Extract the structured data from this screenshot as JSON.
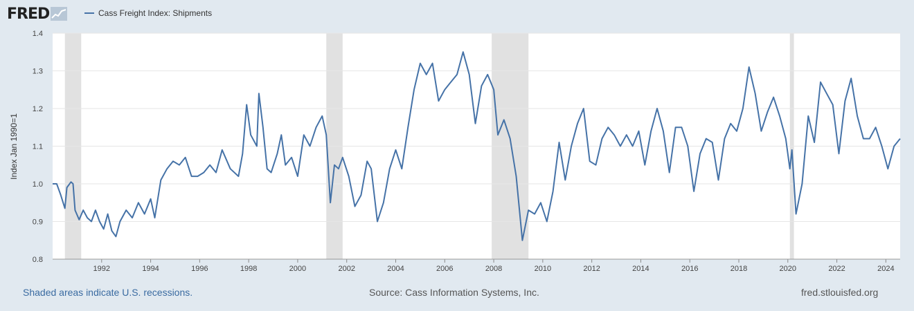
{
  "logo": {
    "text": "FRED",
    "icon": "chart-line-icon"
  },
  "legend": {
    "label": "Cass Freight Index: Shipments",
    "color": "#4572a7"
  },
  "footer": {
    "note": "Shaded areas indicate U.S. recessions.",
    "source": "Source: Cass Information Systems, Inc.",
    "url": "fred.stlouisfed.org"
  },
  "colors": {
    "line": "#4572a7",
    "recession": "#e1e1e1",
    "plot_bg": "#ffffff",
    "page_bg": "#e1e9f0"
  },
  "chart_data": {
    "type": "line",
    "ylabel": "Index Jan 1990=1",
    "xlabel": "",
    "ylim": [
      0.8,
      1.4
    ],
    "xlim": [
      "1990-01",
      "2024-08"
    ],
    "y_ticks": [
      "0.8",
      "0.9",
      "1.0",
      "1.1",
      "1.2",
      "1.3",
      "1.4"
    ],
    "x_ticks": [
      "1992",
      "1994",
      "1996",
      "1998",
      "2000",
      "2002",
      "2004",
      "2006",
      "2008",
      "2010",
      "2012",
      "2014",
      "2016",
      "2018",
      "2020",
      "2022",
      "2024"
    ],
    "grid": true,
    "recessions": [
      [
        "1990-07",
        "1991-03"
      ],
      [
        "2001-03",
        "2001-11"
      ],
      [
        "2007-12",
        "2009-06"
      ],
      [
        "2020-02",
        "2020-04"
      ]
    ],
    "series": [
      {
        "name": "Cass Freight Index: Shipments",
        "points": [
          [
            "1990-01",
            1.0
          ],
          [
            "1990-03",
            1.0
          ],
          [
            "1990-05",
            0.97
          ],
          [
            "1990-07",
            0.935
          ],
          [
            "1990-08",
            0.99
          ],
          [
            "1990-10",
            1.005
          ],
          [
            "1990-11",
            1.0
          ],
          [
            "1990-12",
            0.93
          ],
          [
            "1991-02",
            0.905
          ],
          [
            "1991-04",
            0.93
          ],
          [
            "1991-06",
            0.91
          ],
          [
            "1991-08",
            0.9
          ],
          [
            "1991-10",
            0.93
          ],
          [
            "1991-12",
            0.9
          ],
          [
            "1992-02",
            0.88
          ],
          [
            "1992-04",
            0.92
          ],
          [
            "1992-06",
            0.875
          ],
          [
            "1992-08",
            0.86
          ],
          [
            "1992-10",
            0.9
          ],
          [
            "1993-01",
            0.93
          ],
          [
            "1993-04",
            0.91
          ],
          [
            "1993-07",
            0.95
          ],
          [
            "1993-10",
            0.92
          ],
          [
            "1994-01",
            0.96
          ],
          [
            "1994-03",
            0.91
          ],
          [
            "1994-06",
            1.01
          ],
          [
            "1994-09",
            1.04
          ],
          [
            "1994-12",
            1.06
          ],
          [
            "1995-03",
            1.05
          ],
          [
            "1995-06",
            1.07
          ],
          [
            "1995-09",
            1.02
          ],
          [
            "1995-12",
            1.02
          ],
          [
            "1996-03",
            1.03
          ],
          [
            "1996-06",
            1.05
          ],
          [
            "1996-09",
            1.03
          ],
          [
            "1996-12",
            1.09
          ],
          [
            "1997-04",
            1.04
          ],
          [
            "1997-08",
            1.02
          ],
          [
            "1997-10",
            1.08
          ],
          [
            "1997-12",
            1.21
          ],
          [
            "1998-02",
            1.13
          ],
          [
            "1998-05",
            1.1
          ],
          [
            "1998-06",
            1.24
          ],
          [
            "1998-08",
            1.15
          ],
          [
            "1998-10",
            1.04
          ],
          [
            "1998-12",
            1.03
          ],
          [
            "1999-03",
            1.08
          ],
          [
            "1999-05",
            1.13
          ],
          [
            "1999-07",
            1.05
          ],
          [
            "1999-10",
            1.07
          ],
          [
            "2000-01",
            1.02
          ],
          [
            "2000-04",
            1.13
          ],
          [
            "2000-07",
            1.1
          ],
          [
            "2000-10",
            1.15
          ],
          [
            "2001-01",
            1.18
          ],
          [
            "2001-03",
            1.13
          ],
          [
            "2001-05",
            0.95
          ],
          [
            "2001-07",
            1.05
          ],
          [
            "2001-09",
            1.04
          ],
          [
            "2001-11",
            1.07
          ],
          [
            "2002-02",
            1.02
          ],
          [
            "2002-05",
            0.94
          ],
          [
            "2002-08",
            0.97
          ],
          [
            "2002-11",
            1.06
          ],
          [
            "2003-01",
            1.04
          ],
          [
            "2003-04",
            0.9
          ],
          [
            "2003-07",
            0.95
          ],
          [
            "2003-10",
            1.04
          ],
          [
            "2004-01",
            1.09
          ],
          [
            "2004-04",
            1.04
          ],
          [
            "2004-07",
            1.15
          ],
          [
            "2004-10",
            1.25
          ],
          [
            "2005-01",
            1.32
          ],
          [
            "2005-04",
            1.29
          ],
          [
            "2005-07",
            1.32
          ],
          [
            "2005-10",
            1.22
          ],
          [
            "2006-01",
            1.25
          ],
          [
            "2006-04",
            1.27
          ],
          [
            "2006-07",
            1.29
          ],
          [
            "2006-10",
            1.35
          ],
          [
            "2007-01",
            1.29
          ],
          [
            "2007-04",
            1.16
          ],
          [
            "2007-07",
            1.26
          ],
          [
            "2007-10",
            1.29
          ],
          [
            "2008-01",
            1.25
          ],
          [
            "2008-03",
            1.13
          ],
          [
            "2008-06",
            1.17
          ],
          [
            "2008-09",
            1.12
          ],
          [
            "2008-12",
            1.02
          ],
          [
            "2009-03",
            0.85
          ],
          [
            "2009-06",
            0.93
          ],
          [
            "2009-09",
            0.92
          ],
          [
            "2009-12",
            0.95
          ],
          [
            "2010-03",
            0.9
          ],
          [
            "2010-06",
            0.98
          ],
          [
            "2010-09",
            1.11
          ],
          [
            "2010-12",
            1.01
          ],
          [
            "2011-03",
            1.1
          ],
          [
            "2011-06",
            1.16
          ],
          [
            "2011-09",
            1.2
          ],
          [
            "2011-12",
            1.06
          ],
          [
            "2012-03",
            1.05
          ],
          [
            "2012-06",
            1.12
          ],
          [
            "2012-09",
            1.15
          ],
          [
            "2012-12",
            1.13
          ],
          [
            "2013-03",
            1.1
          ],
          [
            "2013-06",
            1.13
          ],
          [
            "2013-09",
            1.1
          ],
          [
            "2013-12",
            1.14
          ],
          [
            "2014-03",
            1.05
          ],
          [
            "2014-06",
            1.14
          ],
          [
            "2014-09",
            1.2
          ],
          [
            "2014-12",
            1.14
          ],
          [
            "2015-03",
            1.03
          ],
          [
            "2015-06",
            1.15
          ],
          [
            "2015-09",
            1.15
          ],
          [
            "2015-12",
            1.1
          ],
          [
            "2016-03",
            0.98
          ],
          [
            "2016-06",
            1.08
          ],
          [
            "2016-09",
            1.12
          ],
          [
            "2016-12",
            1.11
          ],
          [
            "2017-03",
            1.01
          ],
          [
            "2017-06",
            1.12
          ],
          [
            "2017-09",
            1.16
          ],
          [
            "2017-12",
            1.14
          ],
          [
            "2018-03",
            1.2
          ],
          [
            "2018-06",
            1.31
          ],
          [
            "2018-09",
            1.24
          ],
          [
            "2018-12",
            1.14
          ],
          [
            "2019-03",
            1.19
          ],
          [
            "2019-06",
            1.23
          ],
          [
            "2019-09",
            1.18
          ],
          [
            "2019-12",
            1.12
          ],
          [
            "2020-02",
            1.04
          ],
          [
            "2020-03",
            1.09
          ],
          [
            "2020-05",
            0.92
          ],
          [
            "2020-08",
            1.0
          ],
          [
            "2020-11",
            1.18
          ],
          [
            "2021-02",
            1.11
          ],
          [
            "2021-05",
            1.27
          ],
          [
            "2021-08",
            1.24
          ],
          [
            "2021-11",
            1.21
          ],
          [
            "2022-02",
            1.08
          ],
          [
            "2022-05",
            1.22
          ],
          [
            "2022-08",
            1.28
          ],
          [
            "2022-11",
            1.18
          ],
          [
            "2023-02",
            1.12
          ],
          [
            "2023-05",
            1.12
          ],
          [
            "2023-08",
            1.15
          ],
          [
            "2023-11",
            1.1
          ],
          [
            "2024-02",
            1.04
          ],
          [
            "2024-05",
            1.1
          ],
          [
            "2024-08",
            1.12
          ]
        ]
      }
    ]
  }
}
